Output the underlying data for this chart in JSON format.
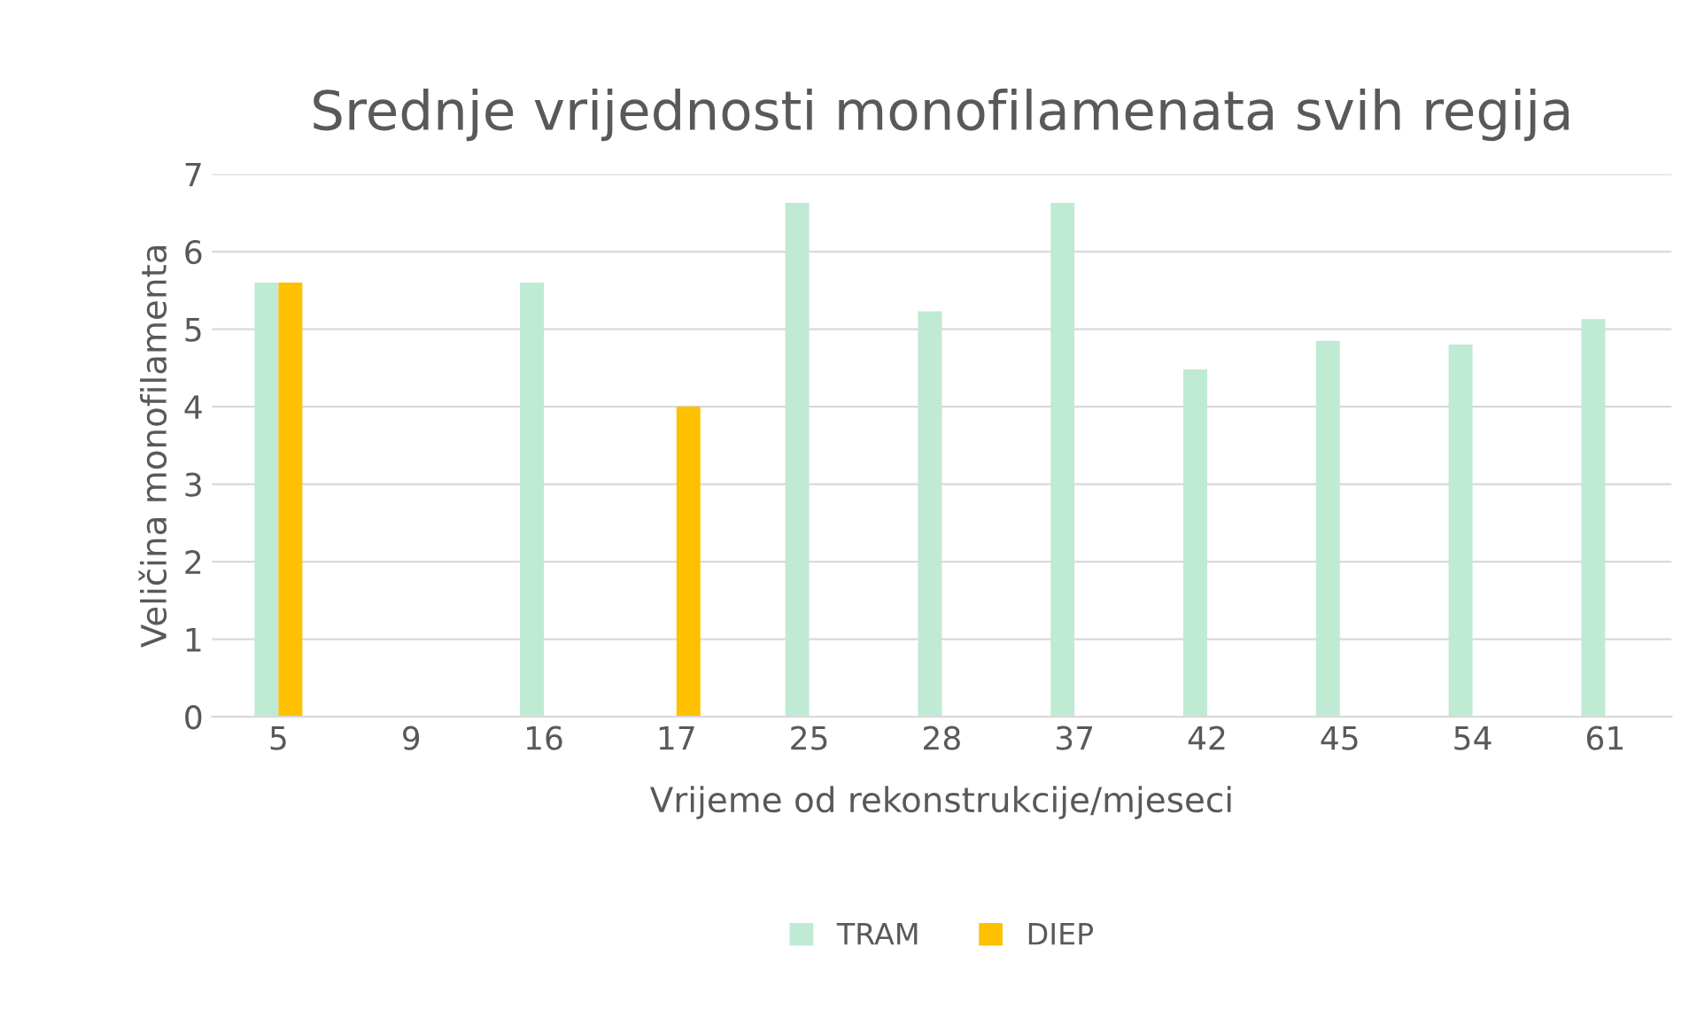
{
  "chart_data": {
    "type": "bar",
    "title": "Srednje vrijednosti monofilamenata svih regija",
    "xlabel": "Vrijeme od rekonstrukcije/mjeseci",
    "ylabel": "Veličina monofilamenta",
    "categories": [
      "5",
      "9",
      "16",
      "17",
      "25",
      "28",
      "37",
      "42",
      "45",
      "54",
      "61"
    ],
    "series": [
      {
        "name": "TRAM",
        "color": "#bfead3",
        "values": [
          5.6,
          null,
          5.6,
          null,
          6.63,
          5.23,
          6.63,
          4.48,
          4.85,
          4.8,
          5.13
        ]
      },
      {
        "name": "DIEP",
        "color": "#ffc000",
        "values": [
          5.6,
          null,
          null,
          4.0,
          null,
          null,
          null,
          null,
          null,
          null,
          null
        ]
      }
    ],
    "ylim": [
      0,
      7
    ],
    "yticks": [
      0,
      1,
      2,
      3,
      4,
      5,
      6,
      7
    ],
    "grid": "y",
    "legend": "bottom"
  }
}
